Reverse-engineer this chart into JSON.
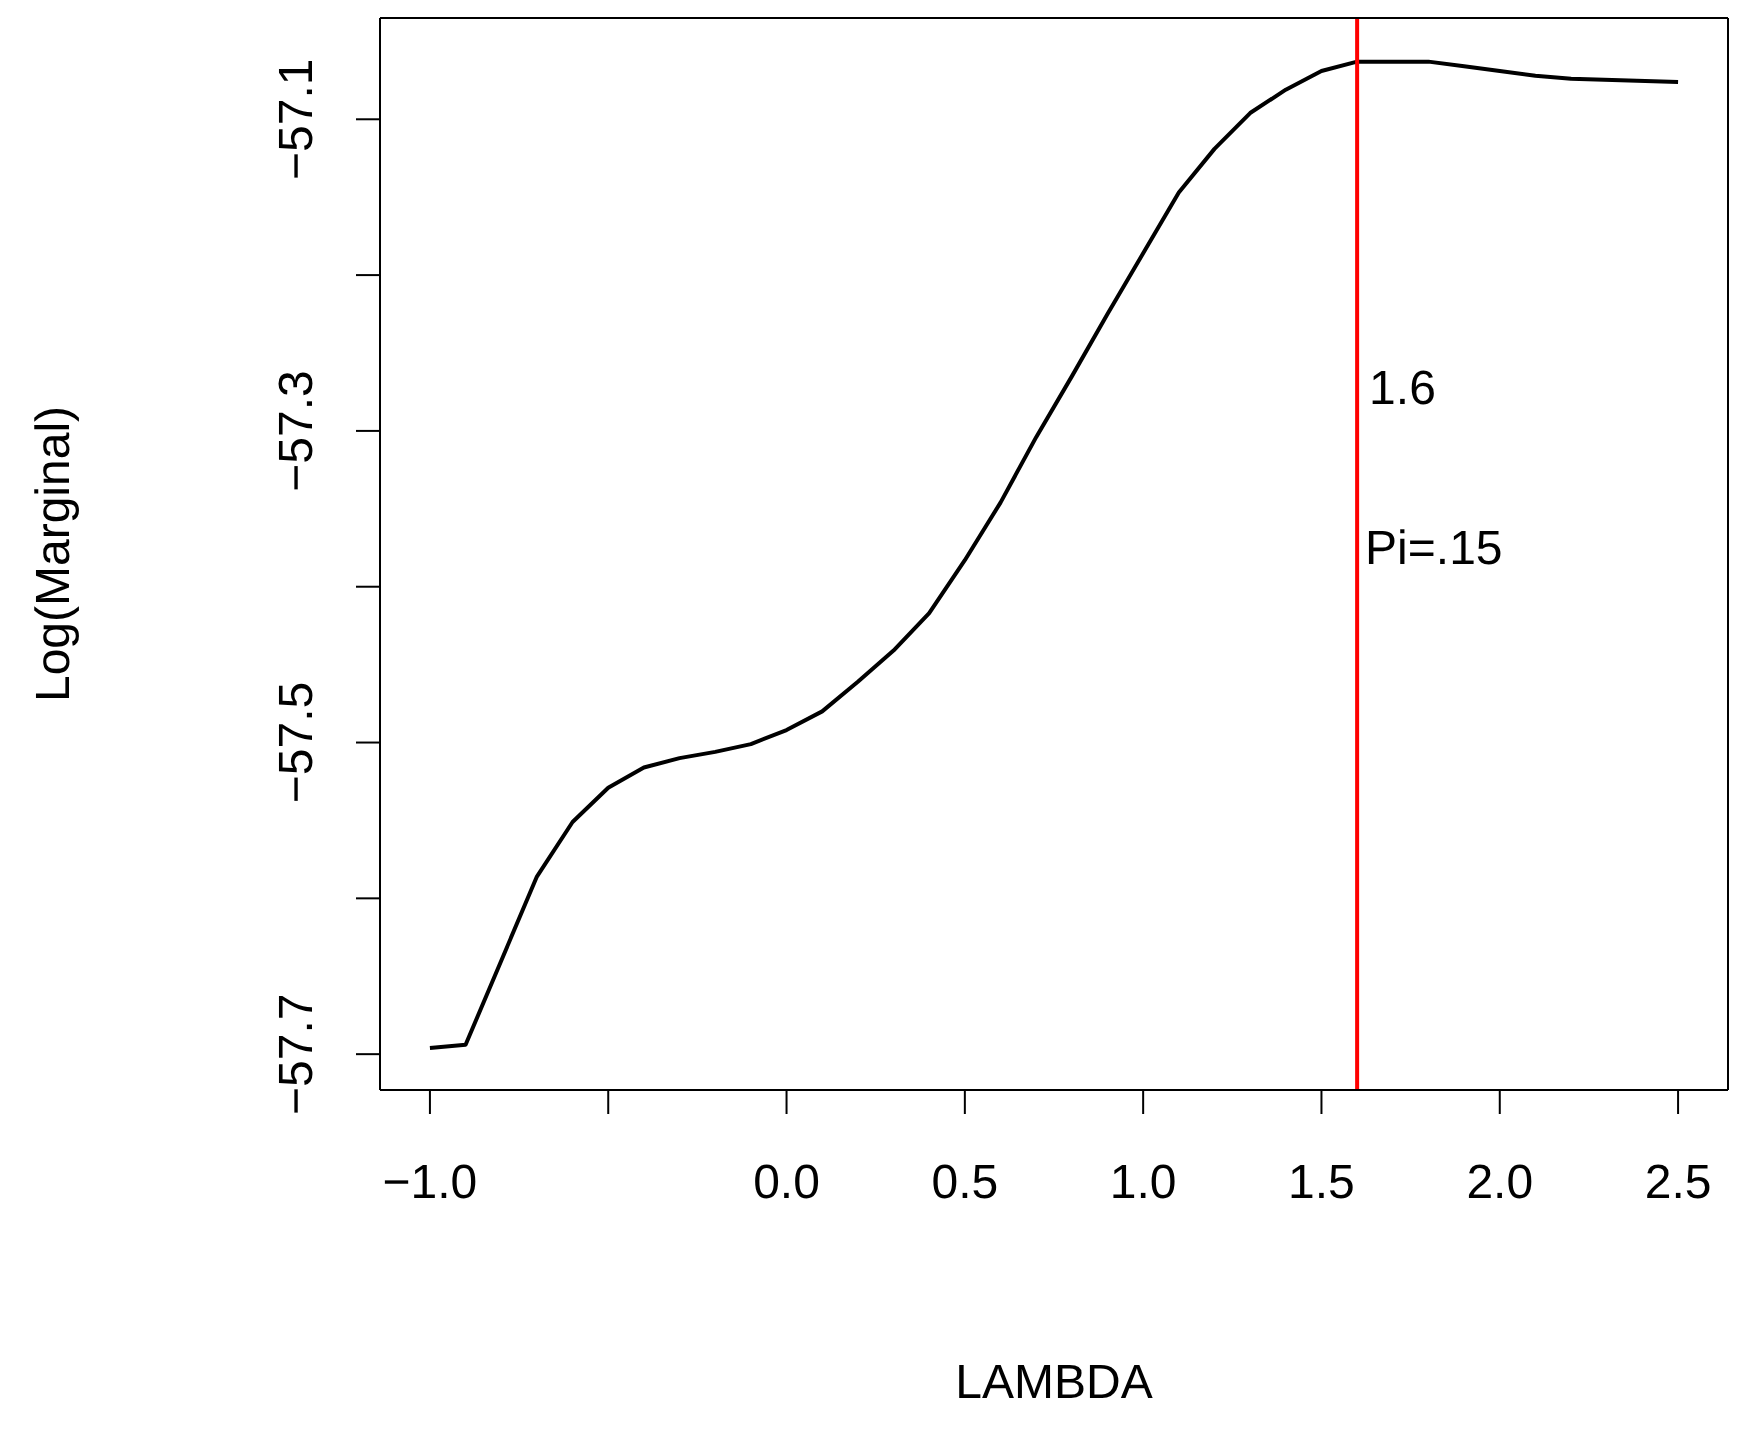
{
  "chart_data": {
    "type": "line",
    "xlabel": "LAMBDA",
    "ylabel": "Log(Marginal)",
    "x": [
      -1.0,
      -0.9,
      -0.8,
      -0.7,
      -0.6,
      -0.5,
      -0.4,
      -0.3,
      -0.2,
      -0.1,
      0.0,
      0.1,
      0.2,
      0.3,
      0.4,
      0.5,
      0.6,
      0.7,
      0.8,
      0.9,
      1.0,
      1.1,
      1.2,
      1.3,
      1.4,
      1.5,
      1.6,
      1.7,
      1.8,
      1.9,
      2.0,
      2.1,
      2.2,
      2.5
    ],
    "series": [
      {
        "color": "#000000",
        "values": [
          -57.696,
          -57.694,
          -57.64,
          -57.586,
          -57.551,
          -57.529,
          -57.516,
          -57.51,
          -57.506,
          -57.501,
          -57.492,
          -57.48,
          -57.461,
          -57.441,
          -57.417,
          -57.383,
          -57.346,
          -57.304,
          -57.265,
          -57.225,
          -57.186,
          -57.147,
          -57.119,
          -57.096,
          -57.081,
          -57.069,
          -57.063,
          -57.063,
          -57.063,
          -57.066,
          -57.069,
          -57.072,
          -57.074,
          -57.076
        ]
      }
    ],
    "xlim": [
      -1.14,
      2.64
    ],
    "ylim": [
      -57.723,
      -57.035
    ],
    "xticks": [
      {
        "value": -1,
        "label": "−1.0"
      },
      {
        "value": -0.5,
        "label": null
      },
      {
        "value": 0,
        "label": "0.0"
      },
      0.5,
      {
        "value": 1,
        "label": "1.0"
      },
      1.5,
      {
        "value": 2,
        "label": "2.0"
      },
      2.5
    ],
    "yticks": [
      -57.7,
      {
        "value": -57.6,
        "label": null
      },
      -57.5,
      {
        "value": -57.4,
        "label": null
      },
      -57.3,
      {
        "value": -57.2,
        "label": null
      },
      -57.1
    ],
    "ref_lines": [
      {
        "axis": "x",
        "value": 1.6,
        "label": "1.6",
        "color": "#ff0000"
      }
    ],
    "annotations": [
      {
        "text": "Pi=.15",
        "x": 1.6,
        "y": -57.375
      }
    ],
    "marker": "none",
    "line_style": "solid"
  }
}
